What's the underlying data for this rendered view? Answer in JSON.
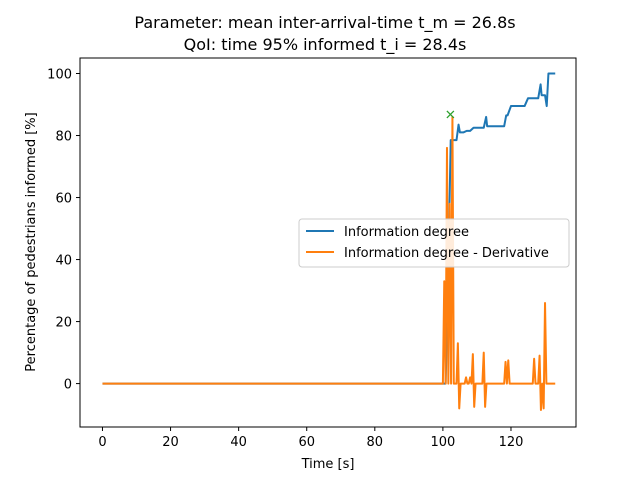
{
  "chart_data": {
    "type": "line",
    "title_line1": "Parameter: mean inter-arrival-time t_m = 26.8s",
    "title_line2": "QoI: time 95% informed t_i = 28.4s",
    "xlabel": "Time [s]",
    "ylabel": "Percentage of pedestrians informed [%]",
    "xlim": [
      -6.6,
      139.1
    ],
    "ylim": [
      -14,
      105
    ],
    "xticks": [
      0,
      20,
      40,
      60,
      80,
      100,
      120
    ],
    "yticks": [
      0,
      20,
      40,
      60,
      80,
      100
    ],
    "xtick_labels": [
      "0",
      "20",
      "40",
      "60",
      "80",
      "100",
      "120"
    ],
    "ytick_labels": [
      "0",
      "20",
      "40",
      "60",
      "80",
      "100"
    ],
    "legend_position": "center-right",
    "series": [
      {
        "name": "Information degree",
        "color": "#1f77b4",
        "x": [
          0,
          100,
          100.8,
          101.5,
          102.3,
          103,
          104,
          104.6,
          105,
          106,
          107,
          108,
          109,
          110,
          111,
          112,
          112.7,
          113,
          114,
          115,
          116,
          117,
          118,
          118.6,
          119,
          120,
          121,
          122,
          123,
          124,
          125,
          126,
          127,
          128,
          128.7,
          129,
          130,
          130.5,
          131,
          132,
          133
        ],
        "y": [
          0,
          0,
          0,
          32,
          78.5,
          78.5,
          78.5,
          83.5,
          81,
          81,
          81.5,
          81.5,
          82.5,
          82.5,
          82.5,
          82.5,
          86,
          83,
          83,
          83,
          83,
          83,
          83,
          86.5,
          86.5,
          89.5,
          89.5,
          89.5,
          89.5,
          89.5,
          92,
          92,
          92,
          92,
          96.5,
          93,
          93,
          89.5,
          100,
          100,
          100
        ]
      },
      {
        "name": "Information degree - Derivative",
        "color": "#ff7f0e",
        "x": [
          0,
          100,
          100.4,
          100.8,
          101.2,
          101.6,
          102,
          102.4,
          102.8,
          103.2,
          103.6,
          104,
          104.4,
          104.8,
          105.2,
          105.6,
          106,
          106.4,
          106.8,
          107.2,
          107.6,
          108,
          108.4,
          108.8,
          109.2,
          109.6,
          110,
          110.4,
          110.8,
          111.2,
          111.6,
          112,
          112.4,
          112.8,
          113.2,
          113.6,
          114,
          114.4,
          114.8,
          115.2,
          115.6,
          116,
          116.4,
          116.8,
          117.2,
          117.6,
          118,
          118.4,
          118.8,
          119.2,
          119.6,
          120,
          120.4,
          120.8,
          121.2,
          121.6,
          122,
          122.4,
          122.8,
          123.2,
          123.6,
          124,
          124.4,
          124.8,
          125.2,
          125.6,
          126,
          126.4,
          126.8,
          127.2,
          127.6,
          128,
          128.4,
          128.8,
          129.2,
          129.6,
          130,
          130.4,
          130.8,
          131.2,
          131.6,
          132,
          133
        ],
        "y": [
          0,
          0,
          33,
          0,
          76,
          0,
          58,
          0,
          86,
          0,
          0,
          0,
          13,
          -8,
          0,
          0,
          0,
          0,
          2,
          0,
          0,
          2,
          0,
          9.5,
          -7.5,
          0,
          0,
          0,
          0,
          0,
          0,
          10,
          -7.5,
          0,
          0,
          0,
          0,
          0,
          0,
          0,
          0,
          0,
          0,
          0,
          0,
          0,
          0,
          7,
          0,
          7.5,
          0,
          0,
          0,
          0,
          0,
          0,
          0,
          0,
          0,
          0,
          0,
          0,
          0,
          0,
          0,
          0,
          0,
          0,
          8,
          0,
          0,
          0,
          9,
          -8.5,
          0,
          -8,
          26,
          0,
          0,
          0,
          0,
          0,
          0
        ]
      }
    ],
    "marker": {
      "x": 102.2,
      "y": 86.8,
      "symbol": "x",
      "color": "#2ca02c"
    }
  }
}
